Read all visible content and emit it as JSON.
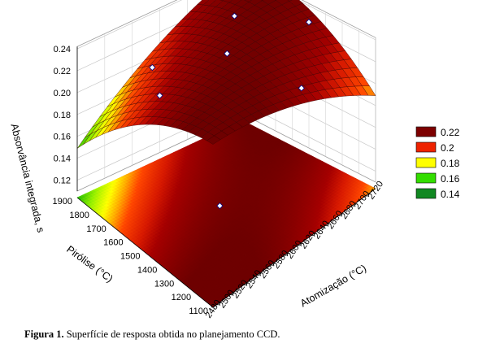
{
  "caption": {
    "label": "Figura 1.",
    "text": "Superfície de resposta obtida no planejamento CCD."
  },
  "chart_data": {
    "type": "surface3d",
    "zlabel": "Absorvância integrada, s",
    "xlabel": "Pirólise (°C)",
    "ylabel": "Atomização (°C)",
    "x_ticks": [
      "1100",
      "1200",
      "1300",
      "1400",
      "1500",
      "1600",
      "1700",
      "1800",
      "1900"
    ],
    "y_ticks": [
      "2480",
      "2500",
      "2520",
      "2540",
      "2560",
      "2580",
      "2600",
      "2620",
      "2640",
      "2660",
      "2680",
      "2700",
      "2720"
    ],
    "z_ticks": [
      "0.12",
      "0.14",
      "0.16",
      "0.18",
      "0.20",
      "0.22",
      "0.24"
    ],
    "xlim": [
      1100,
      1900
    ],
    "ylim": [
      2480,
      2720
    ],
    "zlim": [
      0.11,
      0.24
    ],
    "legend": {
      "position": "right",
      "entries": [
        {
          "label": "0.22",
          "color": "#7d0000"
        },
        {
          "label": "0.2",
          "color": "#ee2200"
        },
        {
          "label": "0.18",
          "color": "#ffff00"
        },
        {
          "label": "0.16",
          "color": "#33dd00"
        },
        {
          "label": "0.14",
          "color": "#118822"
        }
      ]
    },
    "experimental_points": [
      {
        "x": 1500,
        "y": 2600,
        "z": 0.241
      },
      {
        "x": 1700,
        "y": 2660,
        "z": 0.235
      },
      {
        "x": 1500,
        "y": 2720,
        "z": 0.225
      },
      {
        "x": 1700,
        "y": 2540,
        "z": 0.228
      },
      {
        "x": 1300,
        "y": 2660,
        "z": 0.205
      },
      {
        "x": 1900,
        "y": 2600,
        "z": 0.162
      },
      {
        "x": 1300,
        "y": 2540,
        "z": 0.147
      }
    ]
  }
}
